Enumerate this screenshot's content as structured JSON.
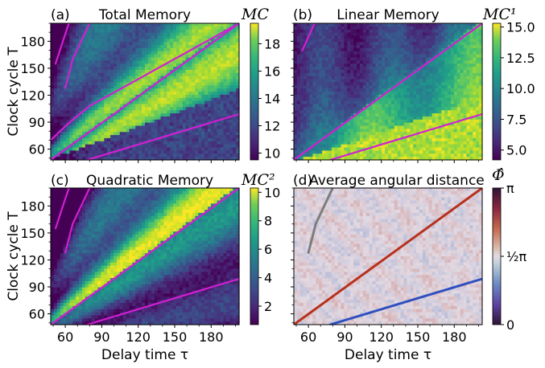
{
  "chart_data": [
    {
      "type": "heatmap",
      "panel_label": "(a)",
      "title": "Total Memory",
      "colorbar_label": "MC",
      "xlabel": "",
      "ylabel": "Clock cycle T",
      "xlim": [
        48,
        203
      ],
      "ylim": [
        48,
        200
      ],
      "x_ticks": [
        60,
        90,
        120,
        150,
        180
      ],
      "y_ticks": [
        60,
        90,
        120,
        150,
        180
      ],
      "x_tick_labels": [
        "",
        "",
        "",
        "",
        ""
      ],
      "y_tick_labels": [
        "60",
        "90",
        "120",
        "150",
        "180"
      ],
      "color_range": [
        9.5,
        19.5
      ],
      "colorbar_ticks": [
        10,
        12,
        14,
        16,
        18
      ],
      "colorbar_tick_labels": [
        "10",
        "12",
        "14",
        "16",
        "18"
      ],
      "colormap": "viridis",
      "resonance_lines": [
        {
          "color": "#d21fd2",
          "points": [
            [
              48,
              48
            ],
            [
              203,
              200
            ]
          ]
        },
        {
          "color": "#d21fd2",
          "points": [
            [
              48,
              70
            ],
            [
              62,
              88
            ],
            [
              80,
              108
            ],
            [
              203,
              200
            ]
          ]
        },
        {
          "color": "#d21fd2",
          "points": [
            [
              78,
              48
            ],
            [
              203,
              99
            ]
          ]
        },
        {
          "color": "#d21fd2",
          "points": [
            [
              60,
              128
            ],
            [
              66,
              160
            ],
            [
              80,
              200
            ]
          ]
        },
        {
          "color": "#d21fd2",
          "points": [
            [
              52,
              155
            ],
            [
              58,
              180
            ],
            [
              63,
              200
            ]
          ]
        }
      ]
    },
    {
      "type": "heatmap",
      "panel_label": "(b)",
      "title": "Linear Memory",
      "colorbar_label": "MC¹",
      "xlabel": "",
      "ylabel": "",
      "xlim": [
        48,
        203
      ],
      "ylim": [
        48,
        200
      ],
      "x_ticks": [
        60,
        90,
        120,
        150,
        180
      ],
      "y_ticks": [
        60,
        90,
        120,
        150,
        180
      ],
      "x_tick_labels": [
        "",
        "",
        "",
        "",
        ""
      ],
      "y_tick_labels": [
        "",
        "",
        "",
        "",
        ""
      ],
      "color_range": [
        4.2,
        15.3
      ],
      "colorbar_ticks": [
        5.0,
        7.5,
        10.0,
        12.5,
        15.0
      ],
      "colorbar_tick_labels": [
        "5.0",
        "7.5",
        "10.0",
        "12.5",
        "15.0"
      ],
      "colormap": "viridis",
      "resonance_lines": [
        {
          "color": "#d21fd2",
          "points": [
            [
              48,
              48
            ],
            [
              203,
              200
            ]
          ]
        },
        {
          "color": "#d21fd2",
          "points": [
            [
              78,
              48
            ],
            [
              203,
              99
            ]
          ]
        },
        {
          "color": "#d21fd2",
          "points": [
            [
              55,
              170
            ],
            [
              60,
              185
            ],
            [
              65,
              200
            ]
          ]
        }
      ]
    },
    {
      "type": "heatmap",
      "panel_label": "(c)",
      "title": "Quadratic Memory",
      "colorbar_label": "MC²",
      "xlabel": "Delay time τ",
      "ylabel": "Clock cycle T",
      "xlim": [
        48,
        203
      ],
      "ylim": [
        48,
        200
      ],
      "x_ticks": [
        60,
        90,
        120,
        150,
        180
      ],
      "y_ticks": [
        60,
        90,
        120,
        150,
        180
      ],
      "x_tick_labels": [
        "60",
        "90",
        "120",
        "150",
        "180"
      ],
      "y_tick_labels": [
        "60",
        "90",
        "120",
        "150",
        "180"
      ],
      "color_range": [
        0.7,
        10.3
      ],
      "colorbar_ticks": [
        2,
        4,
        6,
        8,
        10
      ],
      "colorbar_tick_labels": [
        "2",
        "4",
        "6",
        "8",
        "10"
      ],
      "colormap": "viridis",
      "resonance_lines": [
        {
          "color": "#d21fd2",
          "points": [
            [
              48,
              48
            ],
            [
              203,
              200
            ]
          ]
        },
        {
          "color": "#d21fd2",
          "points": [
            [
              78,
              48
            ],
            [
              203,
              99
            ]
          ]
        },
        {
          "color": "#d21fd2",
          "points": [
            [
              60,
              128
            ],
            [
              66,
              160
            ],
            [
              80,
              200
            ]
          ]
        },
        {
          "color": "#d21fd2",
          "points": [
            [
              52,
              155
            ],
            [
              58,
              180
            ],
            [
              63,
              200
            ]
          ]
        }
      ]
    },
    {
      "type": "heatmap",
      "panel_label": "(d)",
      "title": "Average angular distance",
      "colorbar_label": "Φ̂",
      "xlabel": "Delay time τ",
      "ylabel": "",
      "xlim": [
        48,
        203
      ],
      "ylim": [
        48,
        200
      ],
      "x_ticks": [
        60,
        90,
        120,
        150,
        180
      ],
      "y_ticks": [
        60,
        90,
        120,
        150,
        180
      ],
      "x_tick_labels": [
        "60",
        "90",
        "120",
        "150",
        "180"
      ],
      "y_tick_labels": [
        "",
        "",
        "",
        "",
        ""
      ],
      "color_range": [
        0,
        3.14159
      ],
      "colorbar_ticks": [
        0,
        1.5708,
        3.14159
      ],
      "colorbar_tick_labels": [
        "0",
        "½π",
        "π"
      ],
      "colormap": "twilight",
      "resonance_lines": [
        {
          "color": "#b8311d",
          "points": [
            [
              48,
              48
            ],
            [
              203,
              200
            ]
          ]
        },
        {
          "color": "#2f4fc0",
          "points": [
            [
              78,
              48
            ],
            [
              203,
              99
            ]
          ]
        },
        {
          "color": "#7d7d7d",
          "points": [
            [
              60,
              128
            ],
            [
              66,
              160
            ],
            [
              80,
              200
            ]
          ]
        }
      ]
    }
  ]
}
